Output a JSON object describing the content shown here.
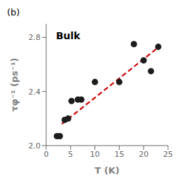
{
  "chart_data": {
    "type": "scatter",
    "xlabel": "T (K)",
    "ylabel": "τφ⁻¹ (ps⁻¹)",
    "annotations": [
      "Bulk",
      "(b)"
    ],
    "series": [
      {
        "type": "line",
        "color": "#cc0000",
        "line_style": "dashed",
        "x": [
          3.2,
          23.5
        ],
        "values": [
          2.16,
          2.74
        ]
      },
      {
        "type": "scatter",
        "color": "#1c1c1c",
        "marker": "circle",
        "x": [
          2.2,
          2.8,
          3.8,
          4.5,
          5.2,
          6.5,
          7.2,
          10.0,
          15.0,
          18.0,
          20.0,
          21.5,
          23.0
        ],
        "values": [
          2.07,
          2.07,
          2.19,
          2.2,
          2.33,
          2.34,
          2.34,
          2.47,
          2.47,
          2.75,
          2.63,
          2.55,
          2.73
        ]
      }
    ],
    "xlim": [
      0,
      25
    ],
    "ylim": [
      2.0,
      2.9
    ],
    "xticks": [
      0,
      5,
      10,
      15,
      20,
      25
    ],
    "yticks": [
      {
        "value": 2.0,
        "label": "2.0"
      },
      2.4,
      2.8
    ],
    "grid": false
  }
}
